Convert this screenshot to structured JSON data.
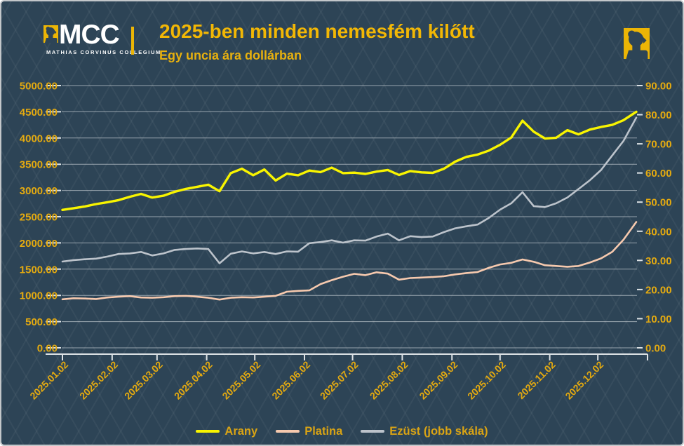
{
  "brand": {
    "logo_text": "MCC",
    "logo_subtext": "MATHIAS CORVINUS COLLEGIUM"
  },
  "colors": {
    "background": "#2d4456",
    "axis_text": "#e4aa10",
    "title_text": "#f2b705",
    "gridline": "#c6cdd3",
    "axis_line": "#dde2e5",
    "gold_line": "#f8f400",
    "platinum_line": "#f6c9ae",
    "silver_line": "#bcc3cb"
  },
  "chart_data": {
    "type": "line",
    "title": "2025-ben minden nemesfém kilőtt",
    "subtitle": "Egy uncia ára dollárban",
    "grid": true,
    "legend_position": "bottom",
    "left_axis": {
      "min": 0,
      "max": 5000,
      "step": 500
    },
    "right_axis": {
      "min": 0,
      "max": 90,
      "step": 10
    },
    "x_tick_labels": [
      "2025.01.02",
      "2025.02.02",
      "2025.03.02",
      "2025.04.02",
      "2025.05.02",
      "2025.06.02",
      "2025.07.02",
      "2025.08.02",
      "2025.09.02",
      "2025.10.02",
      "2025.11.02",
      "2025.12.02"
    ],
    "x_dates": [
      "2025.01.02",
      "2025.01.09",
      "2025.01.16",
      "2025.01.23",
      "2025.01.30",
      "2025.02.06",
      "2025.02.13",
      "2025.02.20",
      "2025.02.27",
      "2025.03.06",
      "2025.03.13",
      "2025.03.20",
      "2025.03.27",
      "2025.04.03",
      "2025.04.10",
      "2025.04.17",
      "2025.04.24",
      "2025.05.01",
      "2025.05.08",
      "2025.05.15",
      "2025.05.22",
      "2025.05.29",
      "2025.06.05",
      "2025.06.12",
      "2025.06.19",
      "2025.06.26",
      "2025.07.03",
      "2025.07.10",
      "2025.07.17",
      "2025.07.24",
      "2025.07.31",
      "2025.08.07",
      "2025.08.14",
      "2025.08.21",
      "2025.08.28",
      "2025.09.04",
      "2025.09.11",
      "2025.09.18",
      "2025.09.25",
      "2025.10.02",
      "2025.10.09",
      "2025.10.16",
      "2025.10.23",
      "2025.10.30",
      "2025.11.06",
      "2025.11.13",
      "2025.11.20",
      "2025.11.27",
      "2025.12.04",
      "2025.12.11",
      "2025.12.18",
      "2025.12.26"
    ],
    "series": [
      {
        "name": "Arany",
        "axis": "left",
        "color": "#f8f400",
        "width": 3.4,
        "values": [
          2630,
          2662,
          2695,
          2740,
          2775,
          2815,
          2880,
          2935,
          2865,
          2900,
          2975,
          3030,
          3070,
          3110,
          2985,
          3330,
          3415,
          3290,
          3400,
          3190,
          3320,
          3290,
          3380,
          3350,
          3435,
          3330,
          3340,
          3315,
          3360,
          3390,
          3295,
          3370,
          3345,
          3335,
          3415,
          3550,
          3640,
          3685,
          3760,
          3870,
          4010,
          4330,
          4120,
          3990,
          4005,
          4150,
          4070,
          4160,
          4210,
          4250,
          4340,
          4500
        ]
      },
      {
        "name": "Platina",
        "axis": "left",
        "color": "#f6c9ae",
        "width": 2.6,
        "values": [
          925,
          945,
          940,
          930,
          960,
          975,
          985,
          960,
          955,
          965,
          985,
          990,
          975,
          955,
          920,
          955,
          965,
          960,
          975,
          990,
          1070,
          1085,
          1095,
          1215,
          1290,
          1355,
          1410,
          1385,
          1440,
          1415,
          1300,
          1330,
          1340,
          1350,
          1365,
          1400,
          1425,
          1445,
          1525,
          1590,
          1620,
          1685,
          1640,
          1575,
          1560,
          1545,
          1560,
          1625,
          1705,
          1830,
          2060,
          2400
        ]
      },
      {
        "name": "Ezüst (jobb skála)",
        "axis": "right",
        "color": "#bcc3cb",
        "width": 2.6,
        "values": [
          29.6,
          30.1,
          30.4,
          30.6,
          31.3,
          32.2,
          32.4,
          32.9,
          31.7,
          32.4,
          33.6,
          33.9,
          34.1,
          33.9,
          29.0,
          32.3,
          33.1,
          32.4,
          32.9,
          32.2,
          33.1,
          33.0,
          35.9,
          36.3,
          36.9,
          36.1,
          36.9,
          36.8,
          38.2,
          39.2,
          36.9,
          38.3,
          38.0,
          38.2,
          39.7,
          41.0,
          41.7,
          42.3,
          44.6,
          47.4,
          49.6,
          53.4,
          48.6,
          48.3,
          49.6,
          51.6,
          54.5,
          57.5,
          61.0,
          66.0,
          71.0,
          79.0
        ]
      }
    ]
  }
}
